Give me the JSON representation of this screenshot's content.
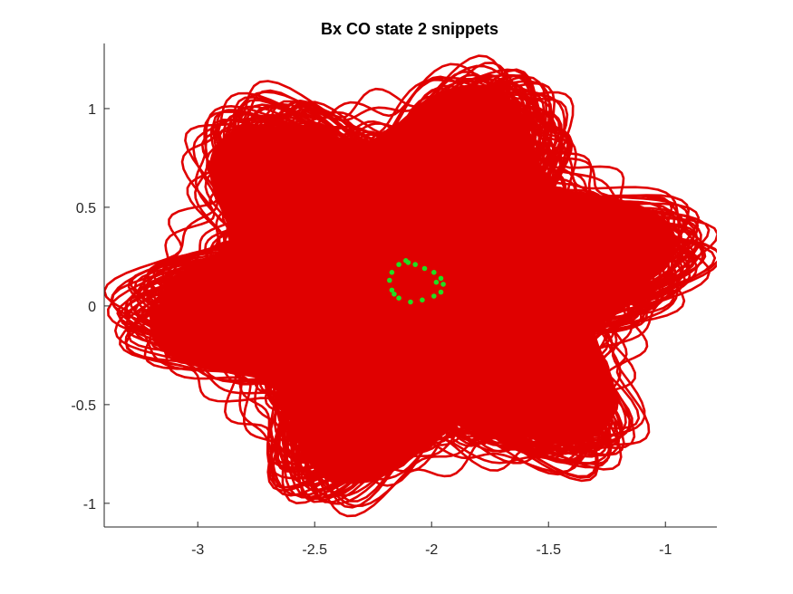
{
  "chart_data": {
    "type": "line",
    "title": "Bx  CO state 2 snippets",
    "xlabel": "",
    "ylabel": "",
    "xlim": [
      -3.4,
      -0.78
    ],
    "ylim": [
      -1.12,
      1.33
    ],
    "xticks": [
      "-3",
      "-2.5",
      "-2",
      "-1.5",
      "-1"
    ],
    "xtick_values": [
      -3,
      -2.5,
      -2,
      -1.5,
      -1
    ],
    "yticks": [
      "1",
      "0.5",
      "0",
      "-0.5",
      "-1"
    ],
    "ytick_values": [
      1,
      0.5,
      0,
      -0.5,
      -1
    ],
    "grid": false,
    "box": "left-bottom",
    "series": [
      {
        "style": "trajectory-lines",
        "color": "#e00000",
        "center": [
          -2.08,
          0.11
        ],
        "lobes": 6,
        "radius_range": [
          0.3,
          1.15
        ]
      },
      {
        "style": "markers",
        "color": "#22dd22",
        "points": [
          [
            -2.11,
            0.23
          ],
          [
            -2.07,
            0.21
          ],
          [
            -2.03,
            0.19
          ],
          [
            -1.99,
            0.17
          ],
          [
            -1.96,
            0.14
          ],
          [
            -1.95,
            0.11
          ],
          [
            -1.96,
            0.07
          ],
          [
            -1.99,
            0.05
          ],
          [
            -2.04,
            0.03
          ],
          [
            -2.09,
            0.02
          ],
          [
            -2.14,
            0.04
          ],
          [
            -2.17,
            0.08
          ],
          [
            -2.18,
            0.13
          ],
          [
            -2.17,
            0.17
          ],
          [
            -2.14,
            0.21
          ],
          [
            -2.1,
            0.22
          ],
          [
            -1.98,
            0.12
          ],
          [
            -2.16,
            0.06
          ]
        ]
      }
    ]
  }
}
